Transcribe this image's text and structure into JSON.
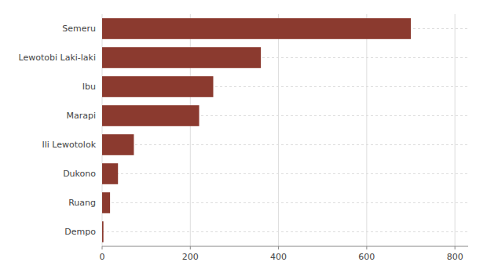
{
  "chart_data": {
    "type": "bar",
    "orientation": "horizontal",
    "categories": [
      "Semeru",
      "Lewotobi Laki-laki",
      "Ibu",
      "Marapi",
      "Ili Lewotolok",
      "Dukono",
      "Ruang",
      "Dempo"
    ],
    "values": [
      700,
      360,
      252,
      220,
      72,
      36,
      18,
      3
    ],
    "color": "#8B3A2F",
    "xlim": [
      0,
      830
    ],
    "xticks": [
      0,
      200,
      400,
      600,
      800
    ],
    "grid": true
  }
}
